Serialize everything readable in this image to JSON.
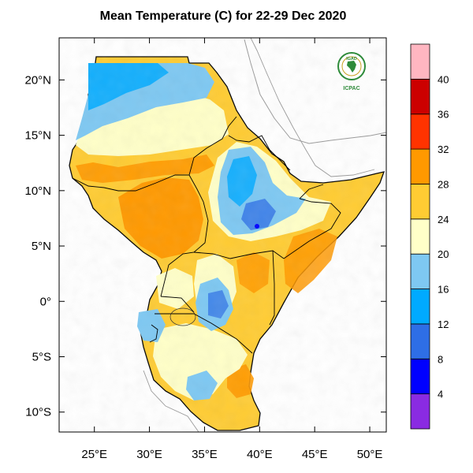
{
  "title": "Mean Temperature (C) for 22-29 Dec 2020",
  "logo": {
    "name": "IGAD",
    "sub": "ICPAC",
    "colors": {
      "green": "#2e8b3a",
      "gold": "#c8a020"
    }
  },
  "map": {
    "lon_range": [
      21.8,
      51.5
    ],
    "lat_range": [
      -11.8,
      23.8
    ],
    "lon_ticks": [
      25,
      30,
      35,
      40,
      45,
      50
    ],
    "lat_ticks": [
      20,
      15,
      10,
      5,
      0,
      -5,
      -10
    ],
    "lon_tick_labels": [
      "25°E",
      "30°E",
      "35°E",
      "40°E",
      "45°E",
      "50°E"
    ],
    "lat_tick_labels": [
      "20°N",
      "15°N",
      "10°N",
      "5°N",
      "0°",
      "5°S",
      "10°S"
    ]
  },
  "colorbar": {
    "unit": "C",
    "levels": [
      4,
      8,
      12,
      16,
      20,
      24,
      28,
      32,
      36,
      40
    ],
    "labels": [
      "4",
      "8",
      "12",
      "16",
      "20",
      "24",
      "28",
      "32",
      "36",
      "40"
    ],
    "colors": [
      "#8a2be2",
      "#0000ff",
      "#2e6ee6",
      "#00aaff",
      "#7ec8f2",
      "#ffffc8",
      "#ffcc33",
      "#ff9900",
      "#ff3300",
      "#cc0000",
      "#ffb6c1"
    ]
  }
}
